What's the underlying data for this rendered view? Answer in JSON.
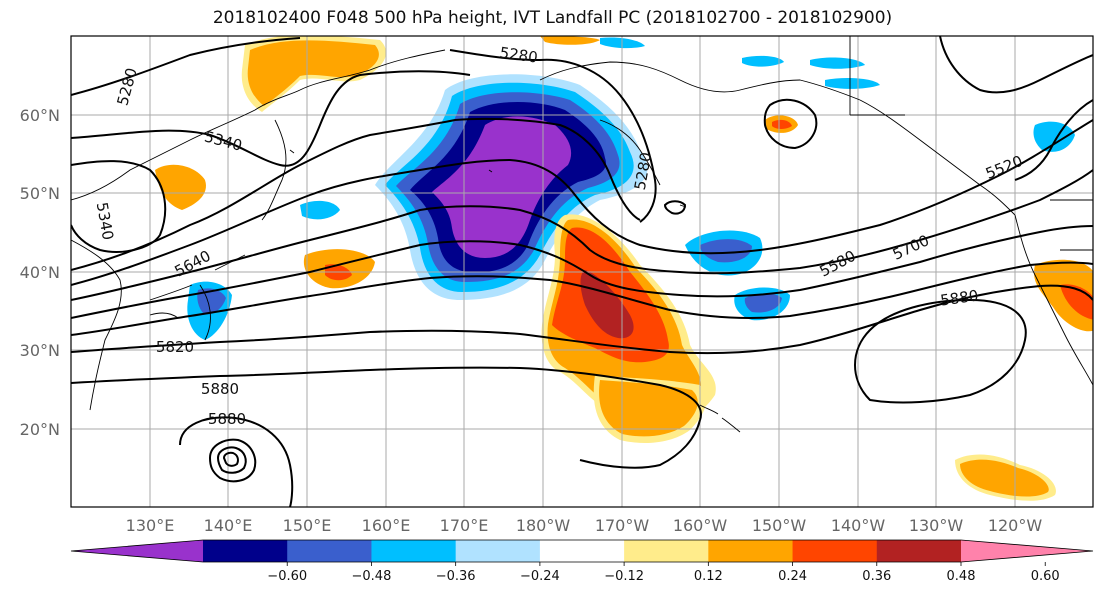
{
  "title": "2018102400 F048 500 hPa height, IVT Landfall PC (2018102700 - 2018102900)",
  "lat_labels": [
    "60°N",
    "50°N",
    "40°N",
    "30°N",
    "20°N"
  ],
  "lon_labels": [
    "130°E",
    "140°E",
    "150°E",
    "160°E",
    "170°E",
    "180°W",
    "170°W",
    "160°W",
    "150°W",
    "140°W",
    "130°W",
    "120°W"
  ],
  "colorbar": {
    "ticks": [
      "−0.60",
      "−0.48",
      "−0.36",
      "−0.24",
      "−0.12",
      "0.12",
      "0.24",
      "0.36",
      "0.48",
      "0.60"
    ],
    "colors": [
      "#9932cc",
      "#00008b",
      "#3a5fcd",
      "#00bfff",
      "#b0e2ff",
      "#ffffff",
      "#ffec8b",
      "#ffa500",
      "#ff4500",
      "#b22222",
      "#ff82ab"
    ]
  },
  "contour_labels": [
    "5280",
    "5280",
    "5340",
    "5340",
    "5640",
    "5820",
    "5880",
    "5880",
    "5520",
    "5580",
    "5700",
    "5880",
    "5280"
  ],
  "colors": {
    "pos_light": "#ffec8b",
    "pos_orange": "#ffa500",
    "pos_red": "#ff4500",
    "pos_dark": "#b22222",
    "neg_light": "#b0e2ff",
    "neg_cyan": "#00bfff",
    "neg_blue": "#3a5fcd",
    "neg_navy": "#00008b",
    "neg_purple": "#9932cc"
  }
}
